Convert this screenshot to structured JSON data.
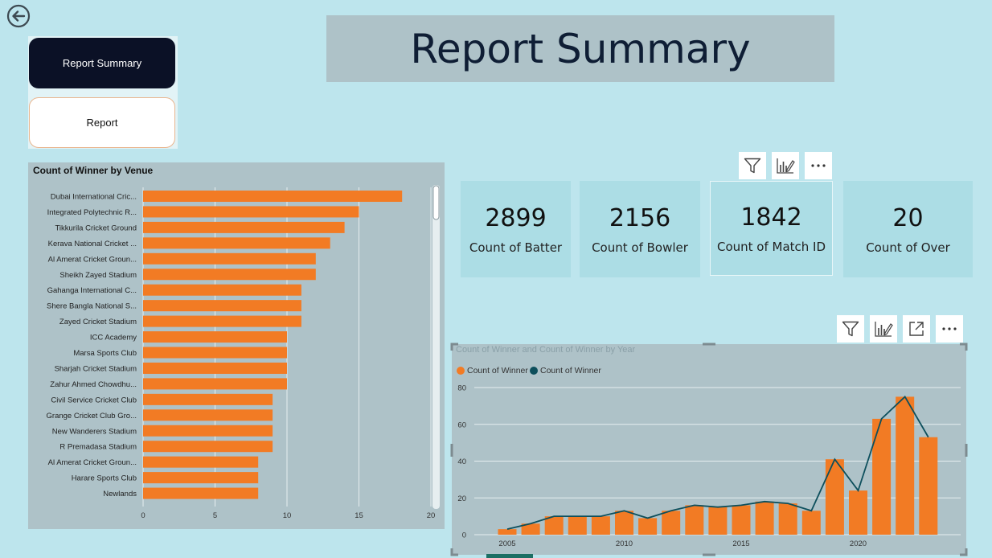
{
  "nav": {
    "summary_label": "Report Summary",
    "report_label": "Report"
  },
  "header": {
    "title": "Report Summary"
  },
  "cards": [
    {
      "value": "2899",
      "label": "Count of Batter"
    },
    {
      "value": "2156",
      "label": "Count of Bowler"
    },
    {
      "value": "1842",
      "label": "Count of Match ID"
    },
    {
      "value": "20",
      "label": "Count of Over"
    }
  ],
  "icons": {
    "back": "back-arrow-icon",
    "filter": "filter-icon",
    "analytics": "analytics-icon",
    "focus": "focus-mode-icon",
    "more": "more-options-icon"
  },
  "colors": {
    "accent": "#f27b24",
    "line": "#0d4f5c",
    "panel": "#aec2c8",
    "background": "#bde5ed",
    "nav_active": "#0b1126"
  },
  "chart_data": [
    {
      "type": "bar",
      "orientation": "horizontal",
      "title": "Count of Winner by Venue",
      "categories": [
        "Dubai International Cric...",
        "Integrated Polytechnic R...",
        "Tikkurila Cricket Ground",
        "Kerava National Cricket ...",
        "Al Amerat Cricket Groun...",
        "Sheikh Zayed Stadium",
        "Gahanga International C...",
        "Shere Bangla National S...",
        "Zayed Cricket Stadium",
        "ICC Academy",
        "Marsa Sports Club",
        "Sharjah Cricket Stadium",
        "Zahur Ahmed Chowdhu...",
        "Civil Service Cricket Club",
        "Grange Cricket Club Gro...",
        "New Wanderers Stadium",
        "R Premadasa Stadium",
        "Al Amerat Cricket Groun...",
        "Harare Sports Club",
        "Newlands"
      ],
      "values": [
        18,
        15,
        14,
        13,
        12,
        12,
        11,
        11,
        11,
        10,
        10,
        10,
        10,
        9,
        9,
        9,
        9,
        8,
        8,
        8
      ],
      "xlim": [
        0,
        20
      ],
      "xticks": [
        0,
        5,
        10,
        15,
        20
      ],
      "grid": true
    },
    {
      "type": "bar+line",
      "title": "Count of Winner and Count of Winner by Year",
      "legend": [
        "Count of Winner",
        "Count of Winner"
      ],
      "x": [
        2005,
        2006,
        2007,
        2008,
        2009,
        2010,
        2011,
        2012,
        2013,
        2014,
        2015,
        2016,
        2017,
        2018,
        2019,
        2020,
        2021,
        2022,
        2023
      ],
      "series": [
        {
          "name": "Count of Winner",
          "kind": "bar",
          "values": [
            3,
            6,
            10,
            10,
            10,
            13,
            9,
            13,
            16,
            15,
            16,
            18,
            17,
            13,
            41,
            24,
            63,
            75,
            53
          ]
        },
        {
          "name": "Count of Winner",
          "kind": "line",
          "values": [
            3,
            6,
            10,
            10,
            10,
            13,
            9,
            13,
            16,
            15,
            16,
            18,
            17,
            13,
            41,
            24,
            63,
            75,
            53
          ]
        }
      ],
      "xticks": [
        2005,
        2010,
        2015,
        2020
      ],
      "yticks": [
        0,
        20,
        40,
        60,
        80
      ],
      "ylim": [
        0,
        80
      ],
      "grid": true
    }
  ]
}
